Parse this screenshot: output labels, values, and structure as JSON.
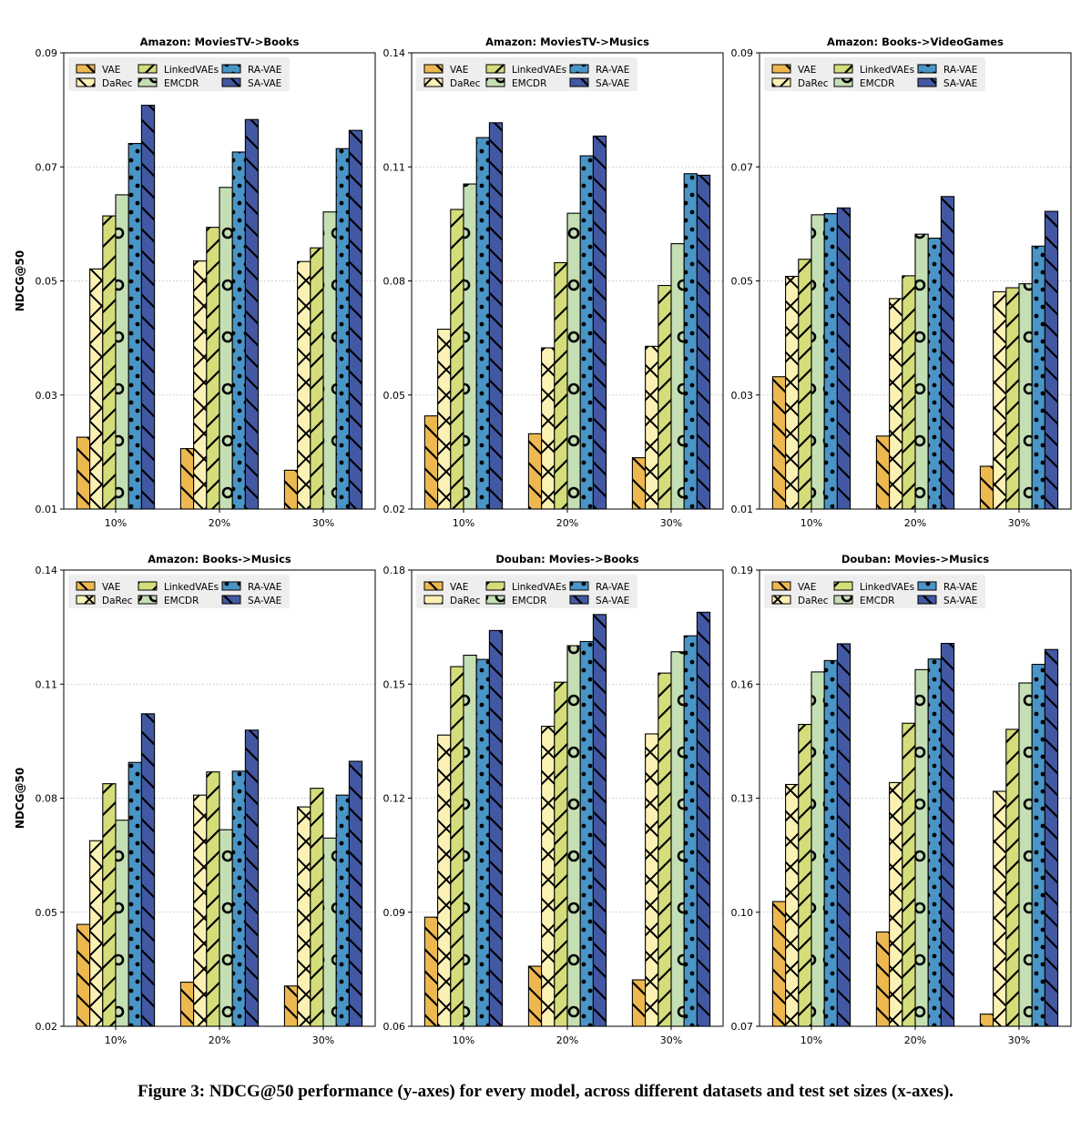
{
  "figure": {
    "caption": "Figure 3: NDCG@50 performance (y-axes) for every model, across different datasets and test set sizes (x-axes).",
    "ylabel": "NDCG@50"
  },
  "colors": {
    "VAE": "#ecb84f",
    "DaRec": "#fbf1b4",
    "LinkedVAEs": "#d4dd7a",
    "EMCDR": "#c5dfb5",
    "RA-VAE": "#4a95c7",
    "SA-VAE": "#4358a3"
  },
  "chart_data": [
    {
      "type": "bar",
      "title": "Amazon: MoviesTV->Books",
      "xlabel": "",
      "ylabel": "NDCG@50",
      "categories": [
        "10%",
        "20%",
        "30%"
      ],
      "ylim": [
        0.01,
        0.09
      ],
      "yticks": [
        0.01,
        0.03,
        0.05,
        0.07,
        0.09
      ],
      "ytick_labels": [
        "0.01",
        "0.03",
        "0.05",
        "0.07",
        "0.09"
      ],
      "grid": "y-dotted",
      "legend": "top-left",
      "series": [
        {
          "name": "VAE",
          "values": [
            0.0226,
            0.0206,
            0.0168
          ]
        },
        {
          "name": "DaRec",
          "values": [
            0.0521,
            0.0535,
            0.0534
          ]
        },
        {
          "name": "LinkedVAEs",
          "values": [
            0.0614,
            0.0594,
            0.0558
          ]
        },
        {
          "name": "EMCDR",
          "values": [
            0.0651,
            0.0664,
            0.0621
          ]
        },
        {
          "name": "RA-VAE",
          "values": [
            0.0741,
            0.0726,
            0.0732
          ]
        },
        {
          "name": "SA-VAE",
          "values": [
            0.0808,
            0.0783,
            0.0764
          ]
        }
      ]
    },
    {
      "type": "bar",
      "title": "Amazon: MoviesTV->Musics",
      "xlabel": "",
      "ylabel": "",
      "categories": [
        "10%",
        "20%",
        "30%"
      ],
      "ylim": [
        0.02,
        0.14
      ],
      "yticks": [
        0.02,
        0.05,
        0.08,
        0.11,
        0.14
      ],
      "ytick_labels": [
        "0.02",
        "0.05",
        "0.08",
        "0.11",
        "0.14"
      ],
      "grid": "y-dotted",
      "legend": "top-left",
      "series": [
        {
          "name": "VAE",
          "values": [
            0.0445,
            0.0398,
            0.0335
          ]
        },
        {
          "name": "DaRec",
          "values": [
            0.0673,
            0.0624,
            0.0628
          ]
        },
        {
          "name": "LinkedVAEs",
          "values": [
            0.0988,
            0.0848,
            0.0788
          ]
        },
        {
          "name": "EMCDR",
          "values": [
            0.1055,
            0.0978,
            0.0898
          ]
        },
        {
          "name": "RA-VAE",
          "values": [
            0.1177,
            0.1129,
            0.1082
          ]
        },
        {
          "name": "SA-VAE",
          "values": [
            0.1216,
            0.1181,
            0.1078
          ]
        }
      ]
    },
    {
      "type": "bar",
      "title": "Amazon: Books->VideoGames",
      "xlabel": "",
      "ylabel": "",
      "categories": [
        "10%",
        "20%",
        "30%"
      ],
      "ylim": [
        0.01,
        0.09
      ],
      "yticks": [
        0.01,
        0.03,
        0.05,
        0.07,
        0.09
      ],
      "ytick_labels": [
        "0.01",
        "0.03",
        "0.05",
        "0.07",
        "0.09"
      ],
      "grid": "y-dotted",
      "legend": "top-left",
      "series": [
        {
          "name": "VAE",
          "values": [
            0.0332,
            0.0228,
            0.0175
          ]
        },
        {
          "name": "DaRec",
          "values": [
            0.0508,
            0.0469,
            0.0481
          ]
        },
        {
          "name": "LinkedVAEs",
          "values": [
            0.0538,
            0.0509,
            0.0488
          ]
        },
        {
          "name": "EMCDR",
          "values": [
            0.0616,
            0.0582,
            0.0495
          ]
        },
        {
          "name": "RA-VAE",
          "values": [
            0.0618,
            0.0575,
            0.0561
          ]
        },
        {
          "name": "SA-VAE",
          "values": [
            0.0628,
            0.0648,
            0.0622
          ]
        }
      ]
    },
    {
      "type": "bar",
      "title": "Amazon: Books->Musics",
      "xlabel": "",
      "ylabel": "NDCG@50",
      "categories": [
        "10%",
        "20%",
        "30%"
      ],
      "ylim": [
        0.02,
        0.14
      ],
      "yticks": [
        0.02,
        0.05,
        0.08,
        0.11,
        0.14
      ],
      "ytick_labels": [
        "0.02",
        "0.05",
        "0.08",
        "0.11",
        "0.14"
      ],
      "grid": "y-dotted",
      "legend": "top-left",
      "series": [
        {
          "name": "VAE",
          "values": [
            0.0468,
            0.0316,
            0.0306
          ]
        },
        {
          "name": "DaRec",
          "values": [
            0.0688,
            0.0808,
            0.0777
          ]
        },
        {
          "name": "LinkedVAEs",
          "values": [
            0.0838,
            0.0869,
            0.0826
          ]
        },
        {
          "name": "EMCDR",
          "values": [
            0.0742,
            0.0717,
            0.0695
          ]
        },
        {
          "name": "RA-VAE",
          "values": [
            0.0894,
            0.0871,
            0.0808
          ]
        },
        {
          "name": "SA-VAE",
          "values": [
            0.1022,
            0.0979,
            0.0897
          ]
        }
      ]
    },
    {
      "type": "bar",
      "title": "Douban: Movies->Books",
      "xlabel": "",
      "ylabel": "",
      "categories": [
        "10%",
        "20%",
        "30%"
      ],
      "ylim": [
        0.06,
        0.18
      ],
      "yticks": [
        0.06,
        0.09,
        0.12,
        0.15,
        0.18
      ],
      "ytick_labels": [
        "0.06",
        "0.09",
        "0.12",
        "0.15",
        "0.18"
      ],
      "grid": "y-dotted",
      "legend": "top-left",
      "series": [
        {
          "name": "VAE",
          "values": [
            0.0887,
            0.0758,
            0.0722
          ]
        },
        {
          "name": "DaRec",
          "values": [
            0.1366,
            0.1389,
            0.1369
          ]
        },
        {
          "name": "LinkedVAEs",
          "values": [
            0.1546,
            0.1505,
            0.1529
          ]
        },
        {
          "name": "EMCDR",
          "values": [
            0.1576,
            0.1601,
            0.1585
          ]
        },
        {
          "name": "RA-VAE",
          "values": [
            0.1565,
            0.1612,
            0.1627
          ]
        },
        {
          "name": "SA-VAE",
          "values": [
            0.1641,
            0.1683,
            0.1689
          ]
        }
      ]
    },
    {
      "type": "bar",
      "title": "Douban: Movies->Musics",
      "xlabel": "",
      "ylabel": "",
      "categories": [
        "10%",
        "20%",
        "30%"
      ],
      "ylim": [
        0.07,
        0.19
      ],
      "yticks": [
        0.07,
        0.1,
        0.13,
        0.16,
        0.19
      ],
      "ytick_labels": [
        "0.07",
        "0.10",
        "0.13",
        "0.16",
        "0.19"
      ],
      "grid": "y-dotted",
      "legend": "top-left",
      "series": [
        {
          "name": "VAE",
          "values": [
            0.1028,
            0.0948,
            0.0732
          ]
        },
        {
          "name": "DaRec",
          "values": [
            0.1336,
            0.1341,
            0.1318
          ]
        },
        {
          "name": "LinkedVAEs",
          "values": [
            0.1494,
            0.1497,
            0.1481
          ]
        },
        {
          "name": "EMCDR",
          "values": [
            0.1632,
            0.1638,
            0.1603
          ]
        },
        {
          "name": "RA-VAE",
          "values": [
            0.1662,
            0.1666,
            0.1652
          ]
        },
        {
          "name": "SA-VAE",
          "values": [
            0.1706,
            0.1707,
            0.1691
          ]
        }
      ]
    }
  ]
}
